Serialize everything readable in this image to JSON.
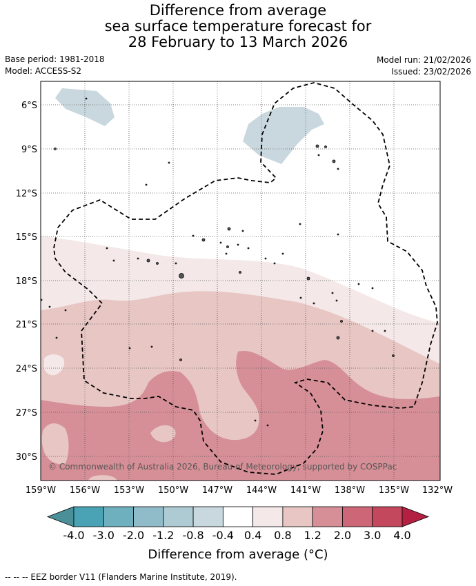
{
  "title": {
    "line1": "Difference from average",
    "line2": "sea surface temperature forecast for",
    "line3": "28 February to 13 March 2026"
  },
  "meta": {
    "base_period": "Base period: 1981-2018",
    "model": "Model: ACCESS-S2",
    "model_run": "Model run: 21/02/2026",
    "issued": "Issued: 23/02/2026"
  },
  "map": {
    "lat_labels": [
      "6°S",
      "9°S",
      "12°S",
      "15°S",
      "18°S",
      "21°S",
      "24°S",
      "27°S",
      "30°S"
    ],
    "lon_labels": [
      "159°W",
      "156°W",
      "153°W",
      "150°W",
      "147°W",
      "144°W",
      "141°W",
      "138°W",
      "135°W",
      "132°W"
    ],
    "copyright": "© Commonwealth of Australia 2026, Bureau of Meteorology, supported by COSPPac",
    "colors": {
      "cool_1": "#c9d8de",
      "warm_1": "#f4e8e8",
      "warm_2": "#e7c6c4",
      "warm_3": "#d68f97",
      "warm_4": "#cd6676"
    }
  },
  "colorbar": {
    "ticks": [
      "-4.0",
      "-3.0",
      "-2.0",
      "-1.2",
      "-0.8",
      "-0.4",
      "0.4",
      "0.8",
      "1.2",
      "2.0",
      "3.0",
      "4.0"
    ],
    "colors": [
      "#4b8f99",
      "#4aa3b4",
      "#6fb0bf",
      "#8fbcc8",
      "#aecbd3",
      "#c9d8de",
      "#ffffff",
      "#f4e8e8",
      "#e7c6c4",
      "#d68f97",
      "#cd6676",
      "#c3485d",
      "#b42042"
    ],
    "label": "Difference from average (°C)"
  },
  "footer": "--  --  -- EEZ border V11 (Flanders Marine Institute, 2019)."
}
